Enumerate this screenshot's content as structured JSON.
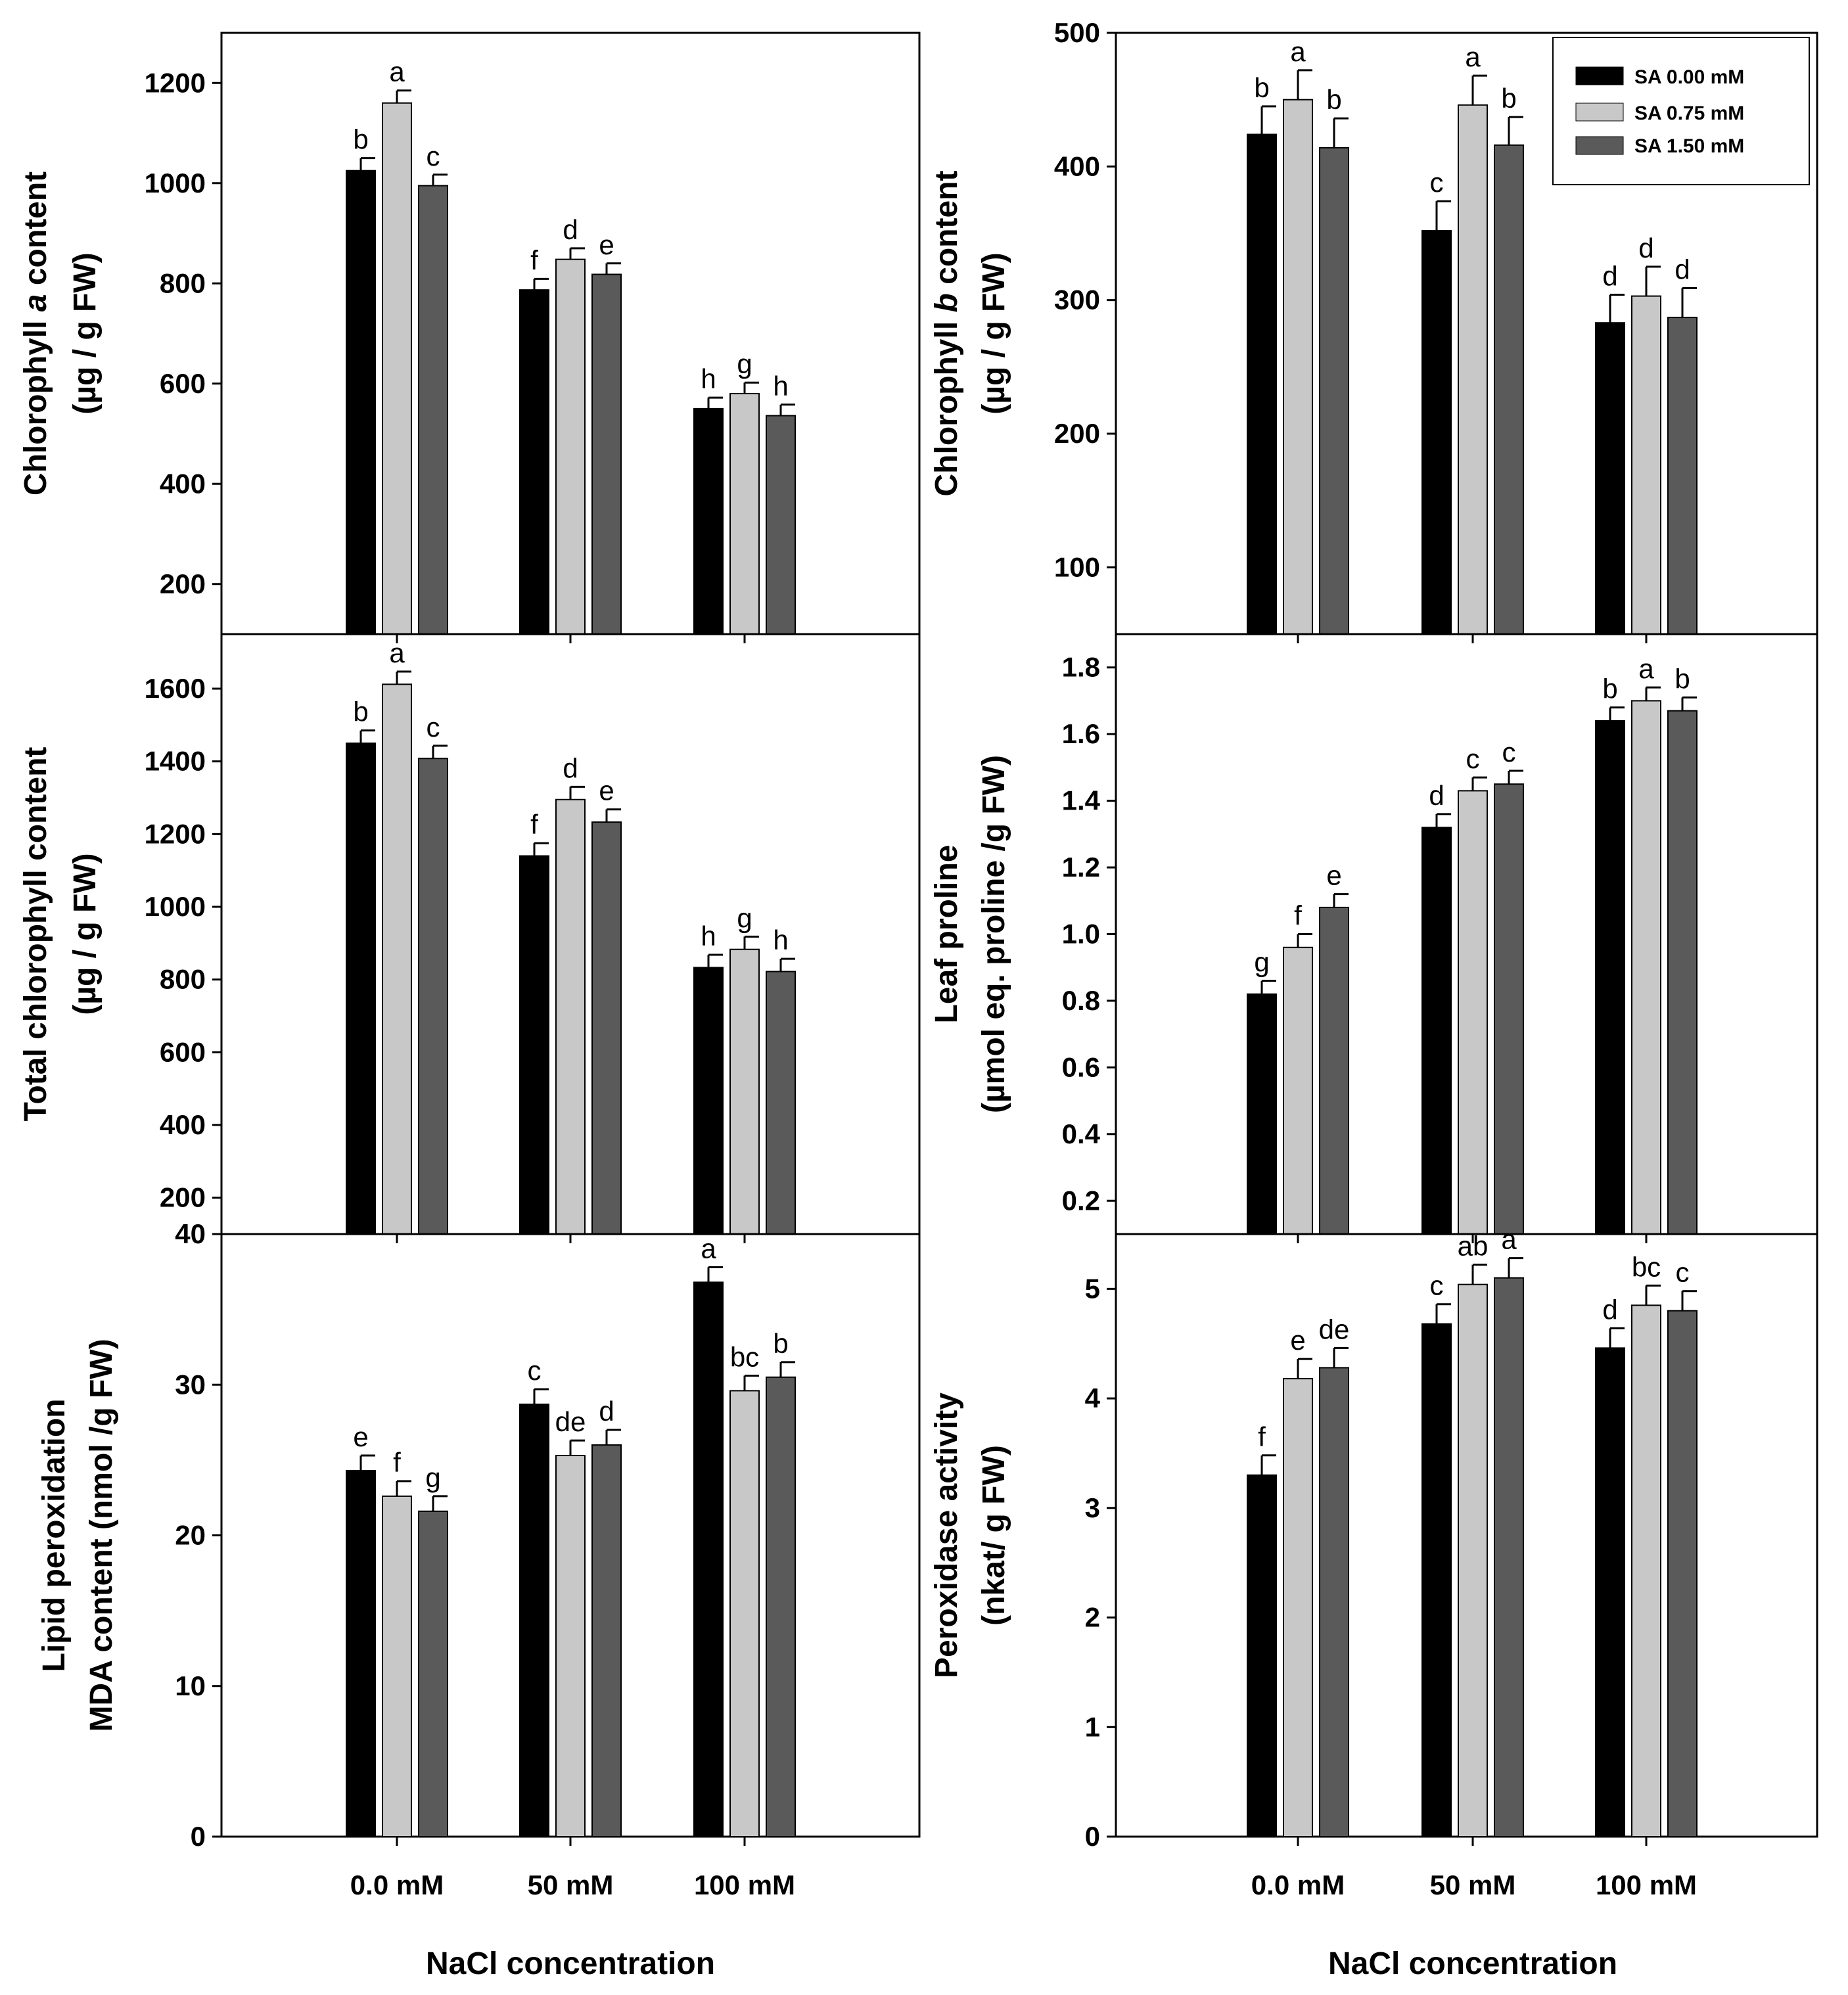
{
  "figure": {
    "series_names": [
      "SA 0.00 mM",
      "SA 0.75 mM",
      "SA 1.50 mM"
    ],
    "series_colors": [
      "#000000",
      "#c8c8c8",
      "#5a5a5a"
    ],
    "categories": [
      "0.0 mM",
      "50 mM",
      "100 mM"
    ],
    "x_title": "NaCl concentration"
  },
  "chart_data": [
    {
      "type": "bar",
      "id": "chl-a",
      "ylabel": "Chlorophyll a content (µg / g FW)",
      "ylabel_lines": [
        "Chlorophyll a content",
        "(µg / g FW)"
      ],
      "ylim": [
        100,
        1300
      ],
      "yticks": [
        200,
        400,
        600,
        800,
        1000,
        1200
      ],
      "categories": [
        "0.0 mM",
        "50 mM",
        "100 mM"
      ],
      "series": [
        {
          "name": "SA 0.00 mM",
          "values": [
            1025,
            787,
            550
          ],
          "errors": [
            25,
            22,
            22
          ],
          "letters": [
            "b",
            "f",
            "h"
          ]
        },
        {
          "name": "SA 0.75 mM",
          "values": [
            1160,
            848,
            580
          ],
          "errors": [
            25,
            22,
            22
          ],
          "letters": [
            "a",
            "d",
            "g"
          ]
        },
        {
          "name": "SA 1.50 mM",
          "values": [
            995,
            818,
            536
          ],
          "errors": [
            22,
            22,
            22
          ],
          "letters": [
            "c",
            "e",
            "h"
          ]
        }
      ]
    },
    {
      "type": "bar",
      "id": "chl-b",
      "ylabel": "Chlorophyll b content (µg / g FW)",
      "ylabel_lines": [
        "Chlorophyll b content",
        "(µg / g FW)"
      ],
      "ylim": [
        50,
        500
      ],
      "yticks": [
        100,
        200,
        300,
        400,
        500
      ],
      "categories": [
        "0.0 mM",
        "50 mM",
        "100 mM"
      ],
      "legend": "top-right",
      "series": [
        {
          "name": "SA 0.00 mM",
          "values": [
            424,
            352,
            283
          ],
          "errors": [
            21,
            22,
            21
          ],
          "letters": [
            "b",
            "c",
            "d"
          ]
        },
        {
          "name": "SA 0.75 mM",
          "values": [
            450,
            446,
            303
          ],
          "errors": [
            22,
            22,
            22
          ],
          "letters": [
            "a",
            "a",
            "d"
          ]
        },
        {
          "name": "SA 1.50 mM",
          "values": [
            414,
            416,
            287
          ],
          "errors": [
            22,
            21,
            22
          ],
          "letters": [
            "b",
            "b",
            "d"
          ]
        }
      ]
    },
    {
      "type": "bar",
      "id": "total-chl",
      "ylabel": "Total chlorophyll content (µg / g FW)",
      "ylabel_lines": [
        "Total chlorophyll content",
        "(µg / g FW)"
      ],
      "ylim": [
        100,
        1750
      ],
      "yticks": [
        200,
        400,
        600,
        800,
        1000,
        1200,
        1400,
        1600
      ],
      "categories": [
        "0.0 mM",
        "50 mM",
        "100 mM"
      ],
      "series": [
        {
          "name": "SA 0.00 mM",
          "values": [
            1450,
            1140,
            833
          ],
          "errors": [
            35,
            35,
            35
          ],
          "letters": [
            "b",
            "f",
            "h"
          ]
        },
        {
          "name": "SA 0.75 mM",
          "values": [
            1612,
            1295,
            883
          ],
          "errors": [
            35,
            35,
            35
          ],
          "letters": [
            "a",
            "d",
            "g"
          ]
        },
        {
          "name": "SA 1.50 mM",
          "values": [
            1408,
            1233,
            822
          ],
          "errors": [
            35,
            35,
            35
          ],
          "letters": [
            "c",
            "e",
            "h"
          ]
        }
      ]
    },
    {
      "type": "bar",
      "id": "proline",
      "ylabel": "Leaf proline (µmol eq. proline /g FW)",
      "ylabel_lines": [
        "Leaf proline",
        "(µmol eq. proline /g FW)"
      ],
      "ylim": [
        0.1,
        1.9
      ],
      "yticks": [
        0.2,
        0.4,
        0.6,
        0.8,
        1.0,
        1.2,
        1.4,
        1.6,
        1.8
      ],
      "categories": [
        "0.0 mM",
        "50 mM",
        "100 mM"
      ],
      "series": [
        {
          "name": "SA 0.00 mM",
          "values": [
            0.82,
            1.32,
            1.64
          ],
          "errors": [
            0.04,
            0.04,
            0.04
          ],
          "letters": [
            "g",
            "d",
            "b"
          ]
        },
        {
          "name": "SA 0.75 mM",
          "values": [
            0.96,
            1.43,
            1.7
          ],
          "errors": [
            0.04,
            0.04,
            0.04
          ],
          "letters": [
            "f",
            "c",
            "a"
          ]
        },
        {
          "name": "SA 1.50 mM",
          "values": [
            1.08,
            1.45,
            1.67
          ],
          "errors": [
            0.04,
            0.04,
            0.04
          ],
          "letters": [
            "e",
            "c",
            "b"
          ]
        }
      ]
    },
    {
      "type": "bar",
      "id": "mda",
      "ylabel": "Lipid peroxidation MDA content (nmol /g FW)",
      "ylabel_lines": [
        "Lipid peroxidation",
        "MDA content (nmol /g FW)"
      ],
      "ylim": [
        0,
        40
      ],
      "yticks": [
        0,
        10,
        20,
        30,
        40
      ],
      "categories": [
        "0.0 mM",
        "50 mM",
        "100 mM"
      ],
      "series": [
        {
          "name": "SA 0.00 mM",
          "values": [
            24.3,
            28.7,
            36.8
          ],
          "errors": [
            1.0,
            1.0,
            1.0
          ],
          "letters": [
            "e",
            "c",
            "a"
          ]
        },
        {
          "name": "SA 0.75 mM",
          "values": [
            22.6,
            25.3,
            29.6
          ],
          "errors": [
            1.0,
            1.0,
            1.0
          ],
          "letters": [
            "f",
            "de",
            "bc"
          ]
        },
        {
          "name": "SA 1.50 mM",
          "values": [
            21.6,
            26.0,
            30.5
          ],
          "errors": [
            1.0,
            1.0,
            1.0
          ],
          "letters": [
            "g",
            "d",
            "b"
          ]
        }
      ]
    },
    {
      "type": "bar",
      "id": "peroxidase",
      "ylabel": "Peroxidase activity (nkat/ g FW)",
      "ylabel_lines": [
        "Peroxidase activity",
        "(nkat/ g FW)"
      ],
      "ylim": [
        0,
        5.5
      ],
      "yticks": [
        0,
        1,
        2,
        3,
        4,
        5
      ],
      "categories": [
        "0.0 mM",
        "50 mM",
        "100 mM"
      ],
      "series": [
        {
          "name": "SA 0.00 mM",
          "values": [
            3.3,
            4.68,
            4.46
          ],
          "errors": [
            0.18,
            0.18,
            0.18
          ],
          "letters": [
            "f",
            "c",
            "d"
          ]
        },
        {
          "name": "SA 0.75 mM",
          "values": [
            4.18,
            5.04,
            4.85
          ],
          "errors": [
            0.18,
            0.18,
            0.18
          ],
          "letters": [
            "e",
            "ab",
            "bc"
          ]
        },
        {
          "name": "SA 1.50 mM",
          "values": [
            4.28,
            5.1,
            4.8
          ],
          "errors": [
            0.18,
            0.18,
            0.18
          ],
          "letters": [
            "de",
            "a",
            "c"
          ]
        }
      ]
    }
  ]
}
